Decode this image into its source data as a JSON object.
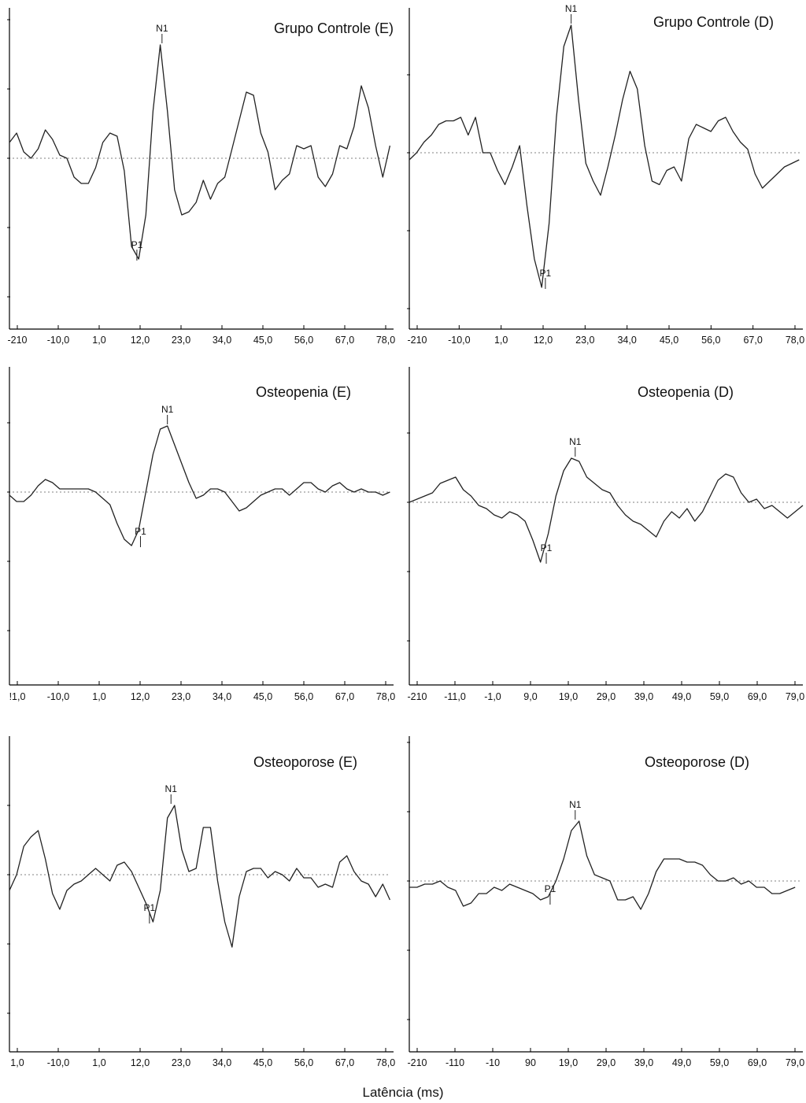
{
  "figure": {
    "xlabel": "Latência (ms)",
    "reference_line_color": "#9a9a9a",
    "trace_color": "#222222",
    "axis_color": "#000000"
  },
  "chart_data": [
    {
      "type": "line",
      "title": "Grupo Controle (E)",
      "xlabel": "",
      "ylabel": "",
      "tick_labels": [
        "-210",
        "-10,0",
        "1,0",
        "12,0",
        "23,0",
        "34,0",
        "45,0",
        "56,0",
        "67,0",
        "78,0"
      ],
      "xlim": [
        -21,
        86
      ],
      "ylim": [
        -5,
        5
      ],
      "baseline": 0,
      "peaks": [
        {
          "name": "N1",
          "x": 21.5,
          "y": 3.6
        },
        {
          "name": "P1",
          "x": 14.5,
          "y": -3.2
        }
      ],
      "x": [
        -21,
        -19,
        -17,
        -15,
        -13,
        -11,
        -9,
        -7,
        -5,
        -3,
        -1,
        1,
        3,
        5,
        7,
        9,
        11,
        13,
        15,
        17,
        19,
        21,
        23,
        25,
        27,
        29,
        31,
        33,
        35,
        37,
        39,
        41,
        43,
        45,
        47,
        49,
        51,
        53,
        55,
        57,
        59,
        61,
        63,
        65,
        67,
        69,
        71,
        73,
        75,
        77,
        79,
        81,
        83,
        85
      ],
      "y": [
        0.5,
        0.8,
        0.2,
        0.0,
        0.3,
        0.9,
        0.6,
        0.1,
        0.0,
        -0.6,
        -0.8,
        -0.8,
        -0.3,
        0.5,
        0.8,
        0.7,
        -0.4,
        -2.8,
        -3.2,
        -1.8,
        1.5,
        3.6,
        1.5,
        -1.0,
        -1.8,
        -1.7,
        -1.4,
        -0.7,
        -1.3,
        -0.8,
        -0.6,
        0.3,
        1.2,
        2.1,
        2.0,
        0.8,
        0.2,
        -1.0,
        -0.7,
        -0.5,
        0.4,
        0.3,
        0.4,
        -0.6,
        -0.9,
        -0.5,
        0.4,
        0.3,
        1.0,
        2.3,
        1.6,
        0.4,
        -0.6,
        0.4
      ]
    },
    {
      "type": "line",
      "title": "Grupo Controle (D)",
      "xlabel": "",
      "ylabel": "",
      "tick_labels": [
        "-210",
        "-10,0",
        "1,0",
        "12,0",
        "23,0",
        "34,0",
        "45,0",
        "56,0",
        "67,0",
        "78,0"
      ],
      "xlim": [
        -21,
        86
      ],
      "ylim": [
        -5,
        5
      ],
      "baseline": 0,
      "peaks": [
        {
          "name": "N1",
          "x": 23,
          "y": 3.6
        },
        {
          "name": "P1",
          "x": 16,
          "y": -3.8
        }
      ],
      "x": [
        -21,
        -19,
        -17,
        -15,
        -13,
        -11,
        -9,
        -7,
        -5,
        -3,
        -1,
        1,
        3,
        5,
        7,
        9,
        11,
        13,
        15,
        17,
        19,
        21,
        23,
        25,
        27,
        29,
        31,
        33,
        35,
        37,
        39,
        41,
        43,
        45,
        47,
        49,
        51,
        53,
        55,
        57,
        59,
        61,
        63,
        65,
        67,
        69,
        71,
        73,
        75,
        77,
        79,
        81,
        83,
        85
      ],
      "y": [
        -0.2,
        0.0,
        0.3,
        0.5,
        0.8,
        0.9,
        0.9,
        1.0,
        0.5,
        1.0,
        0.0,
        0.0,
        -0.5,
        -0.9,
        -0.4,
        0.2,
        -1.5,
        -3.0,
        -3.8,
        -2.0,
        1.0,
        3.0,
        3.6,
        1.5,
        -0.3,
        -0.8,
        -1.2,
        -0.4,
        0.5,
        1.5,
        2.3,
        1.8,
        0.2,
        -0.8,
        -0.9,
        -0.5,
        -0.4,
        -0.8,
        0.4,
        0.8,
        0.7,
        0.6,
        0.9,
        1.0,
        0.6,
        0.3,
        0.1,
        -0.6,
        -1.0,
        -0.8,
        -0.6,
        -0.4,
        -0.3,
        -0.2
      ]
    },
    {
      "type": "line",
      "title": "Osteopenia (E)",
      "xlabel": "",
      "ylabel": "",
      "tick_labels": [
        "!1,0",
        "-10,0",
        "1,0",
        "12,0",
        "23,0",
        "34,0",
        "45,0",
        "56,0",
        "67,0",
        "78,0"
      ],
      "xlim": [
        -21,
        86
      ],
      "ylim": [
        -5,
        5
      ],
      "baseline": 0,
      "peaks": [
        {
          "name": "N1",
          "x": 23,
          "y": 2.1
        },
        {
          "name": "P1",
          "x": 15.5,
          "y": -1.7
        }
      ],
      "x": [
        -21,
        -19,
        -17,
        -15,
        -13,
        -11,
        -9,
        -7,
        -5,
        -3,
        -1,
        1,
        3,
        5,
        7,
        9,
        11,
        13,
        15,
        17,
        19,
        21,
        23,
        25,
        27,
        29,
        31,
        33,
        35,
        37,
        39,
        41,
        43,
        45,
        47,
        49,
        51,
        53,
        55,
        57,
        59,
        61,
        63,
        65,
        67,
        69,
        71,
        73,
        75,
        77,
        79,
        81,
        83,
        85
      ],
      "y": [
        -0.1,
        -0.3,
        -0.3,
        -0.1,
        0.2,
        0.4,
        0.3,
        0.1,
        0.1,
        0.1,
        0.1,
        0.1,
        0.0,
        -0.2,
        -0.4,
        -1.0,
        -1.5,
        -1.7,
        -1.2,
        0.0,
        1.2,
        2.0,
        2.1,
        1.5,
        0.9,
        0.3,
        -0.2,
        -0.1,
        0.1,
        0.1,
        0.0,
        -0.3,
        -0.6,
        -0.5,
        -0.3,
        -0.1,
        0.0,
        0.1,
        0.1,
        -0.1,
        0.1,
        0.3,
        0.3,
        0.1,
        0.0,
        0.2,
        0.3,
        0.1,
        0.0,
        0.1,
        0.0,
        0.0,
        -0.1,
        0.0
      ]
    },
    {
      "type": "line",
      "title": "Osteopenia (D)",
      "xlabel": "",
      "ylabel": "",
      "tick_labels": [
        "-210",
        "-11,0",
        "-1,0",
        "9,0",
        "19,0",
        "29,0",
        "39,0",
        "49,0",
        "59,0",
        "69,0",
        "79,0"
      ],
      "xlim": [
        -21,
        81
      ],
      "ylim": [
        -5,
        5
      ],
      "baseline": 0,
      "peaks": [
        {
          "name": "N1",
          "x": 22,
          "y": 1.4
        },
        {
          "name": "P1",
          "x": 14.5,
          "y": -1.9
        }
      ],
      "x": [
        -21,
        -19,
        -17,
        -15,
        -13,
        -11,
        -9,
        -7,
        -5,
        -3,
        -1,
        1,
        3,
        5,
        7,
        9,
        11,
        13,
        15,
        17,
        19,
        21,
        23,
        25,
        27,
        29,
        31,
        33,
        35,
        37,
        39,
        41,
        43,
        45,
        47,
        49,
        51,
        53,
        55,
        57,
        59,
        61,
        63,
        65,
        67,
        69,
        71,
        73,
        75,
        77,
        79,
        81
      ],
      "y": [
        0.0,
        0.1,
        0.2,
        0.3,
        0.6,
        0.7,
        0.8,
        0.4,
        0.2,
        -0.1,
        -0.2,
        -0.4,
        -0.5,
        -0.3,
        -0.4,
        -0.6,
        -1.2,
        -1.9,
        -1.0,
        0.2,
        1.0,
        1.4,
        1.3,
        0.8,
        0.6,
        0.4,
        0.3,
        -0.1,
        -0.4,
        -0.6,
        -0.7,
        -0.9,
        -1.1,
        -0.6,
        -0.3,
        -0.5,
        -0.2,
        -0.6,
        -0.3,
        0.2,
        0.7,
        0.9,
        0.8,
        0.3,
        0.0,
        0.1,
        -0.2,
        -0.1,
        -0.3,
        -0.5,
        -0.3,
        -0.1
      ]
    },
    {
      "type": "line",
      "title": "Osteoporose (E)",
      "xlabel": "",
      "ylabel": "",
      "tick_labels": [
        "1,0",
        "-10,0",
        "1,0",
        "12,0",
        "23,0",
        "34,0",
        "45,0",
        "56,0",
        "67,0",
        "78,0"
      ],
      "xlim": [
        -21,
        86
      ],
      "ylim": [
        -5,
        5
      ],
      "baseline": 0,
      "peaks": [
        {
          "name": "N1",
          "x": 24,
          "y": 2.2
        },
        {
          "name": "P1",
          "x": 18,
          "y": -1.5
        }
      ],
      "x": [
        -21,
        -19,
        -17,
        -15,
        -13,
        -11,
        -9,
        -7,
        -5,
        -3,
        -1,
        1,
        3,
        5,
        7,
        9,
        11,
        13,
        15,
        17,
        19,
        21,
        23,
        25,
        27,
        29,
        31,
        33,
        35,
        37,
        39,
        41,
        43,
        45,
        47,
        49,
        51,
        53,
        55,
        57,
        59,
        61,
        63,
        65,
        67,
        69,
        71,
        73,
        75,
        77,
        79,
        81,
        83,
        85
      ],
      "y": [
        -0.5,
        0.0,
        0.9,
        1.2,
        1.4,
        0.5,
        -0.6,
        -1.1,
        -0.5,
        -0.3,
        -0.2,
        0.0,
        0.2,
        0.0,
        -0.2,
        0.3,
        0.4,
        0.1,
        -0.4,
        -0.9,
        -1.5,
        -0.5,
        1.8,
        2.2,
        0.8,
        0.1,
        0.2,
        1.5,
        1.5,
        -0.2,
        -1.5,
        -2.3,
        -0.7,
        0.1,
        0.2,
        0.2,
        -0.1,
        0.1,
        0.0,
        -0.2,
        0.2,
        -0.1,
        -0.1,
        -0.4,
        -0.3,
        -0.4,
        0.4,
        0.6,
        0.1,
        -0.2,
        -0.3,
        -0.7,
        -0.3,
        -0.8
      ]
    },
    {
      "type": "line",
      "title": "Osteoporose (D)",
      "xlabel": "",
      "ylabel": "",
      "tick_labels": [
        "-210",
        "-110",
        "-10",
        "90",
        "19,0",
        "29,0",
        "39,0",
        "49,0",
        "59,0",
        "69,0",
        "79,0"
      ],
      "xlim": [
        -21,
        81
      ],
      "ylim": [
        -5,
        5
      ],
      "baseline": 0,
      "peaks": [
        {
          "name": "N1",
          "x": 22,
          "y": 1.9
        },
        {
          "name": "P1",
          "x": 15.5,
          "y": -0.7
        }
      ],
      "x": [
        -21,
        -19,
        -17,
        -15,
        -13,
        -11,
        -9,
        -7,
        -5,
        -3,
        -1,
        1,
        3,
        5,
        7,
        9,
        11,
        13,
        15,
        17,
        19,
        21,
        23,
        25,
        27,
        29,
        31,
        33,
        35,
        37,
        39,
        41,
        43,
        45,
        47,
        49,
        51,
        53,
        55,
        57,
        59,
        61,
        63,
        65,
        67,
        69,
        71,
        73,
        75,
        77,
        79
      ],
      "y": [
        -0.2,
        -0.2,
        -0.1,
        -0.1,
        0.0,
        -0.2,
        -0.3,
        -0.8,
        -0.7,
        -0.4,
        -0.4,
        -0.2,
        -0.3,
        -0.1,
        -0.2,
        -0.3,
        -0.4,
        -0.6,
        -0.5,
        0.0,
        0.7,
        1.6,
        1.9,
        0.8,
        0.2,
        0.1,
        0.0,
        -0.6,
        -0.6,
        -0.5,
        -0.9,
        -0.4,
        0.3,
        0.7,
        0.7,
        0.7,
        0.6,
        0.6,
        0.5,
        0.2,
        0.0,
        0.0,
        0.1,
        -0.1,
        0.0,
        -0.2,
        -0.2,
        -0.4,
        -0.4,
        -0.3,
        -0.2
      ]
    }
  ]
}
